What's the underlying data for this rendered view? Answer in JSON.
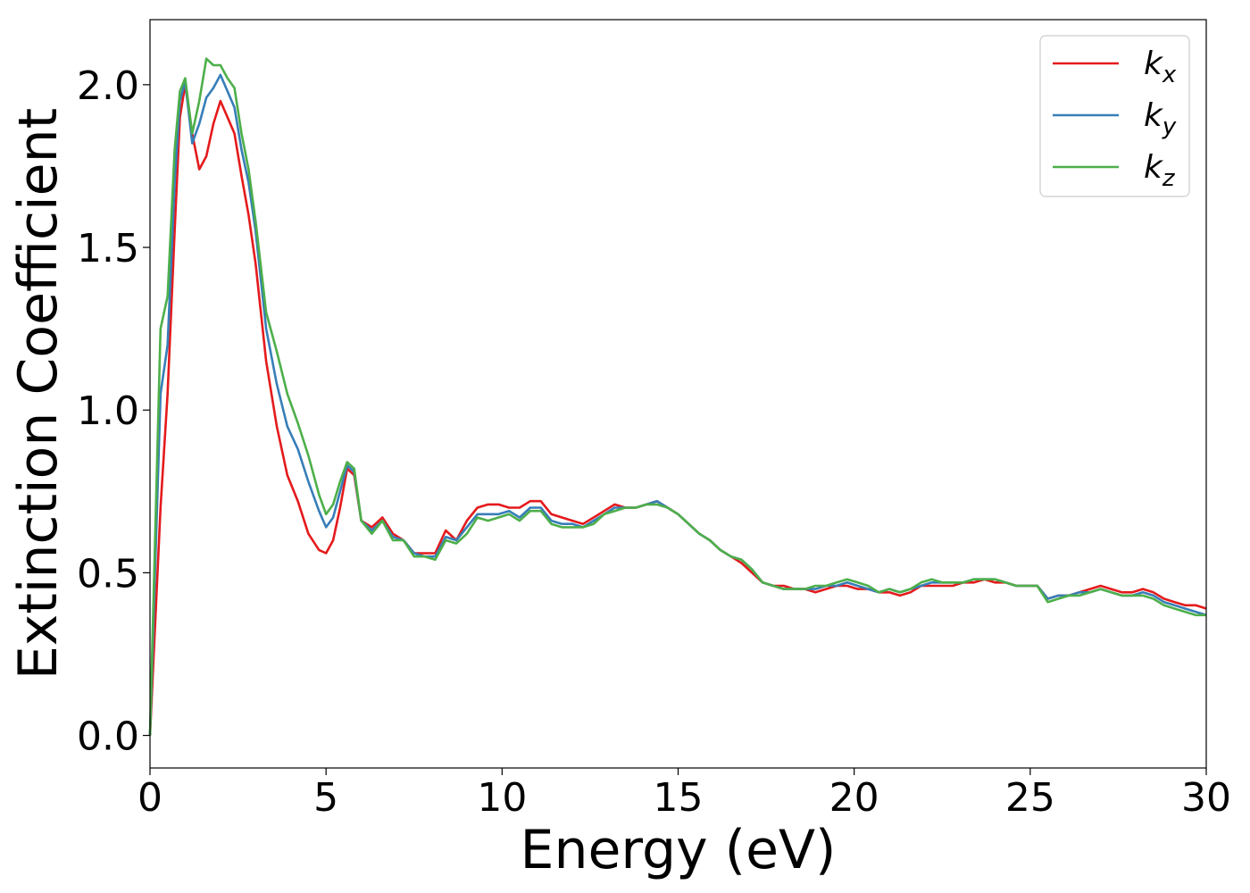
{
  "chart_data": {
    "type": "line",
    "title": "",
    "xlabel": "Energy (eV)",
    "ylabel": "Extinction Coefficient",
    "xlim": [
      0,
      30
    ],
    "ylim": [
      -0.1,
      2.2
    ],
    "xticks": [
      0,
      5,
      10,
      15,
      20,
      25,
      30
    ],
    "xtick_labels": [
      "0",
      "5",
      "10",
      "15",
      "20",
      "25",
      "30"
    ],
    "yticks": [
      0.0,
      0.5,
      1.0,
      1.5,
      2.0
    ],
    "ytick_labels": [
      "0.0",
      "0.5",
      "1.0",
      "1.5",
      "2.0"
    ],
    "grid": false,
    "legend_position": "top-right",
    "series": [
      {
        "name": "k_x",
        "label_base": "k",
        "label_sub": "x",
        "color": "#e41a1c",
        "x": [
          0,
          0.3,
          0.5,
          0.7,
          0.85,
          1.0,
          1.2,
          1.4,
          1.6,
          1.8,
          2.0,
          2.2,
          2.4,
          2.6,
          2.8,
          3.0,
          3.3,
          3.6,
          3.9,
          4.2,
          4.5,
          4.8,
          5.0,
          5.2,
          5.4,
          5.6,
          5.8,
          6.0,
          6.3,
          6.6,
          6.9,
          7.2,
          7.5,
          7.8,
          8.1,
          8.4,
          8.7,
          9.0,
          9.3,
          9.6,
          9.9,
          10.2,
          10.5,
          10.8,
          11.1,
          11.4,
          11.7,
          12.0,
          12.3,
          12.6,
          12.9,
          13.2,
          13.5,
          13.8,
          14.1,
          14.4,
          14.7,
          15.0,
          15.3,
          15.6,
          15.9,
          16.2,
          16.5,
          16.8,
          17.1,
          17.4,
          17.7,
          18.0,
          18.3,
          18.6,
          18.9,
          19.2,
          19.5,
          19.8,
          20.1,
          20.4,
          20.7,
          21.0,
          21.3,
          21.6,
          21.9,
          22.2,
          22.5,
          22.8,
          23.1,
          23.4,
          23.7,
          24.0,
          24.3,
          24.6,
          24.9,
          25.2,
          25.5,
          25.8,
          26.1,
          26.4,
          26.7,
          27.0,
          27.3,
          27.6,
          27.9,
          28.2,
          28.5,
          28.8,
          29.1,
          29.4,
          29.7,
          30.0
        ],
        "y": [
          0.0,
          0.7,
          1.05,
          1.55,
          1.9,
          2.0,
          1.85,
          1.74,
          1.78,
          1.88,
          1.95,
          1.9,
          1.85,
          1.72,
          1.6,
          1.45,
          1.15,
          0.95,
          0.8,
          0.72,
          0.62,
          0.57,
          0.56,
          0.6,
          0.7,
          0.82,
          0.8,
          0.66,
          0.64,
          0.67,
          0.62,
          0.6,
          0.56,
          0.56,
          0.56,
          0.63,
          0.6,
          0.66,
          0.7,
          0.71,
          0.71,
          0.7,
          0.7,
          0.72,
          0.72,
          0.68,
          0.67,
          0.66,
          0.65,
          0.67,
          0.69,
          0.71,
          0.7,
          0.7,
          0.71,
          0.72,
          0.7,
          0.68,
          0.65,
          0.62,
          0.6,
          0.57,
          0.55,
          0.53,
          0.5,
          0.47,
          0.46,
          0.46,
          0.45,
          0.45,
          0.44,
          0.45,
          0.46,
          0.46,
          0.45,
          0.45,
          0.44,
          0.44,
          0.43,
          0.44,
          0.46,
          0.46,
          0.46,
          0.46,
          0.47,
          0.47,
          0.48,
          0.47,
          0.47,
          0.46,
          0.46,
          0.46,
          0.42,
          0.43,
          0.43,
          0.44,
          0.45,
          0.46,
          0.45,
          0.44,
          0.44,
          0.45,
          0.44,
          0.42,
          0.41,
          0.4,
          0.4,
          0.39
        ]
      },
      {
        "name": "k_y",
        "label_base": "k",
        "label_sub": "y",
        "color": "#377eb8",
        "x": [
          0,
          0.3,
          0.5,
          0.7,
          0.85,
          1.0,
          1.2,
          1.4,
          1.6,
          1.8,
          2.0,
          2.2,
          2.4,
          2.6,
          2.8,
          3.0,
          3.3,
          3.6,
          3.9,
          4.2,
          4.5,
          4.8,
          5.0,
          5.2,
          5.4,
          5.6,
          5.8,
          6.0,
          6.3,
          6.6,
          6.9,
          7.2,
          7.5,
          7.8,
          8.1,
          8.4,
          8.7,
          9.0,
          9.3,
          9.6,
          9.9,
          10.2,
          10.5,
          10.8,
          11.1,
          11.4,
          11.7,
          12.0,
          12.3,
          12.6,
          12.9,
          13.2,
          13.5,
          13.8,
          14.1,
          14.4,
          14.7,
          15.0,
          15.3,
          15.6,
          15.9,
          16.2,
          16.5,
          16.8,
          17.1,
          17.4,
          17.7,
          18.0,
          18.3,
          18.6,
          18.9,
          19.2,
          19.5,
          19.8,
          20.1,
          20.4,
          20.7,
          21.0,
          21.3,
          21.6,
          21.9,
          22.2,
          22.5,
          22.8,
          23.1,
          23.4,
          23.7,
          24.0,
          24.3,
          24.6,
          24.9,
          25.2,
          25.5,
          25.8,
          26.1,
          26.4,
          26.7,
          27.0,
          27.3,
          27.6,
          27.9,
          28.2,
          28.5,
          28.8,
          29.1,
          29.4,
          29.7,
          30.0
        ],
        "y": [
          0.0,
          1.05,
          1.2,
          1.7,
          1.95,
          2.01,
          1.82,
          1.88,
          1.96,
          1.99,
          2.03,
          1.98,
          1.93,
          1.8,
          1.7,
          1.55,
          1.25,
          1.08,
          0.95,
          0.88,
          0.78,
          0.69,
          0.64,
          0.67,
          0.75,
          0.83,
          0.81,
          0.66,
          0.63,
          0.66,
          0.61,
          0.6,
          0.56,
          0.55,
          0.55,
          0.61,
          0.6,
          0.64,
          0.68,
          0.68,
          0.68,
          0.69,
          0.67,
          0.7,
          0.7,
          0.66,
          0.65,
          0.65,
          0.64,
          0.66,
          0.68,
          0.7,
          0.7,
          0.7,
          0.71,
          0.72,
          0.7,
          0.68,
          0.65,
          0.62,
          0.6,
          0.57,
          0.55,
          0.54,
          0.51,
          0.47,
          0.46,
          0.45,
          0.45,
          0.45,
          0.45,
          0.46,
          0.46,
          0.47,
          0.46,
          0.45,
          0.44,
          0.45,
          0.44,
          0.45,
          0.46,
          0.47,
          0.47,
          0.47,
          0.47,
          0.48,
          0.48,
          0.48,
          0.47,
          0.46,
          0.46,
          0.46,
          0.42,
          0.43,
          0.43,
          0.44,
          0.44,
          0.45,
          0.44,
          0.43,
          0.43,
          0.44,
          0.43,
          0.41,
          0.4,
          0.39,
          0.38,
          0.37
        ]
      },
      {
        "name": "k_z",
        "label_base": "k",
        "label_sub": "z",
        "color": "#4daf4a",
        "x": [
          0,
          0.3,
          0.5,
          0.7,
          0.85,
          1.0,
          1.2,
          1.4,
          1.6,
          1.8,
          2.0,
          2.2,
          2.4,
          2.6,
          2.8,
          3.0,
          3.3,
          3.6,
          3.9,
          4.2,
          4.5,
          4.8,
          5.0,
          5.2,
          5.4,
          5.6,
          5.8,
          6.0,
          6.3,
          6.6,
          6.9,
          7.2,
          7.5,
          7.8,
          8.1,
          8.4,
          8.7,
          9.0,
          9.3,
          9.6,
          9.9,
          10.2,
          10.5,
          10.8,
          11.1,
          11.4,
          11.7,
          12.0,
          12.3,
          12.6,
          12.9,
          13.2,
          13.5,
          13.8,
          14.1,
          14.4,
          14.7,
          15.0,
          15.3,
          15.6,
          15.9,
          16.2,
          16.5,
          16.8,
          17.1,
          17.4,
          17.7,
          18.0,
          18.3,
          18.6,
          18.9,
          19.2,
          19.5,
          19.8,
          20.1,
          20.4,
          20.7,
          21.0,
          21.3,
          21.6,
          21.9,
          22.2,
          22.5,
          22.8,
          23.1,
          23.4,
          23.7,
          24.0,
          24.3,
          24.6,
          24.9,
          25.2,
          25.5,
          25.8,
          26.1,
          26.4,
          26.7,
          27.0,
          27.3,
          27.6,
          27.9,
          28.2,
          28.5,
          28.8,
          29.1,
          29.4,
          29.7,
          30.0
        ],
        "y": [
          0.0,
          1.25,
          1.35,
          1.8,
          1.98,
          2.02,
          1.85,
          1.95,
          2.08,
          2.06,
          2.06,
          2.02,
          1.99,
          1.85,
          1.74,
          1.58,
          1.3,
          1.18,
          1.05,
          0.96,
          0.86,
          0.74,
          0.68,
          0.71,
          0.78,
          0.84,
          0.82,
          0.66,
          0.62,
          0.66,
          0.6,
          0.6,
          0.55,
          0.55,
          0.54,
          0.6,
          0.59,
          0.62,
          0.67,
          0.66,
          0.67,
          0.68,
          0.66,
          0.69,
          0.69,
          0.65,
          0.64,
          0.64,
          0.64,
          0.65,
          0.68,
          0.69,
          0.7,
          0.7,
          0.71,
          0.71,
          0.7,
          0.68,
          0.65,
          0.62,
          0.6,
          0.57,
          0.55,
          0.54,
          0.51,
          0.47,
          0.46,
          0.45,
          0.45,
          0.45,
          0.46,
          0.46,
          0.47,
          0.48,
          0.47,
          0.46,
          0.44,
          0.45,
          0.44,
          0.45,
          0.47,
          0.48,
          0.47,
          0.47,
          0.47,
          0.48,
          0.48,
          0.48,
          0.47,
          0.46,
          0.46,
          0.46,
          0.41,
          0.42,
          0.43,
          0.43,
          0.44,
          0.45,
          0.44,
          0.43,
          0.43,
          0.43,
          0.42,
          0.4,
          0.39,
          0.38,
          0.37,
          0.37
        ]
      }
    ]
  }
}
